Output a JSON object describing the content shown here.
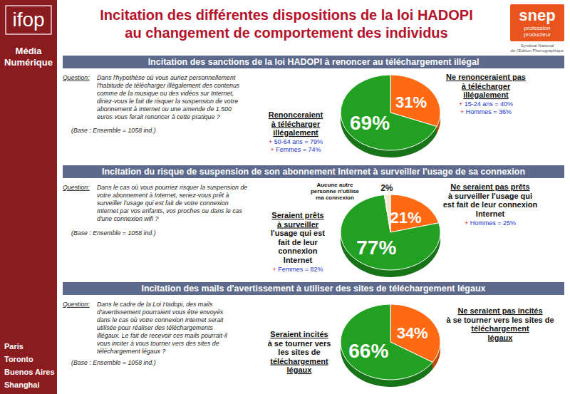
{
  "header": {
    "logo": "ifop",
    "section": "Média\nNumérique",
    "title": "Incitation des différentes dispositions de la loi HADOPI\nau changement de comportement des individus",
    "cities": [
      "Paris",
      "Toronto",
      "Buenos Aires",
      "Shanghai"
    ],
    "partner": {
      "name": "snep",
      "tagline": "profession\nproducteur",
      "caption": "Syndicat National\nde l'Edition Phonographique"
    }
  },
  "chart_data": [
    {
      "type": "pie",
      "title": "Incitation des sanctions de la loi HADOPI à renoncer au téléchargement illégal",
      "question_label": "Question:",
      "question": "Dans l'hypothèse où vous auriez personnellement\nl'habitude de télécharger illégalement des contenus\ncomme de la musique ou des vidéos sur Internet,\ndiriez-vous le fait de risquer la suspension de votre\nabonnement à Internet ou une amende de 1.500\neuros vous ferait renoncer à cette pratique ?",
      "base": "(Base : Ensemble = 1058 ind.)",
      "categories": [
        "Ne renonceraient pas\nà télécharger\nillégalement",
        "Renonceraient\nà télécharger\nillégalement"
      ],
      "values": [
        31,
        69
      ],
      "value_labels": [
        "31%",
        "69%"
      ],
      "colors": [
        "#ff6a13",
        "#22a022"
      ],
      "notes": [
        [
          "+ 15-24 ans = 40%",
          "+ Hommes = 36%"
        ],
        [
          "+ 50-64 ans = 79%",
          "+ Femmes = 74%"
        ]
      ],
      "data_labels": true
    },
    {
      "type": "pie",
      "title": "Incitation du risque de suspension de son abonnement Internet à surveiller l'usage de sa connexion",
      "question_label": "Question:",
      "question": "Dans le cas où vous pourriez risquer la suspension de\nvotre abonnement à Internet, seriez-vous prêt à\nsurveiller l'usage qui est fait de votre connexion\nInternet par vos enfants, vos proches ou dans le cas\nd'une connexion wifi ?",
      "base": "(Base : Ensemble = 1058 ind.)",
      "categories": [
        "Ne seraient pas prêts\nà surveiller l'usage qui\nest fait de leur connexion\nInternet",
        "Seraient prêts\nà surveiller\nl'usage qui est\nfait de leur\nconnexion\nInternet",
        "Aucune autre\npersonne n'utilise\nma connexion"
      ],
      "values": [
        21,
        77,
        2
      ],
      "value_labels": [
        "21%",
        "77%",
        "2%"
      ],
      "colors": [
        "#ff6a13",
        "#22a022",
        "#f3ead0"
      ],
      "notes": [
        [
          "+ Hommes = 25%"
        ],
        [
          "+ Femmes = 82%"
        ],
        []
      ],
      "data_labels": true
    },
    {
      "type": "pie",
      "title": "Incitation des mails d'avertissement à utiliser des sites de téléchargement légaux",
      "question_label": "Question:",
      "question": "Dans le cadre de la Loi Hadopi, des mails\nd'avertissement pourraient vous être envoyés\ndans le cas où votre connexion Internet serait\nutilisée pour réaliser des téléchargements\nillégaux. Le fait de recevoir ces mails pourrait-il\nvous inciter à vous tourner vers des sites de\ntéléchargement légaux ?",
      "base": "(Base : Ensemble = 1058 ind.)",
      "categories": [
        "Ne seraient pas incités\nà se tourner vers les sites de\ntéléchargement\nlégaux",
        "Seraient incités\nà se tourner vers\nles sites de\ntéléchargement\nlégaux"
      ],
      "values": [
        34,
        66
      ],
      "value_labels": [
        "34%",
        "66%"
      ],
      "colors": [
        "#ff6a13",
        "#22a022"
      ],
      "data_labels": true
    }
  ]
}
